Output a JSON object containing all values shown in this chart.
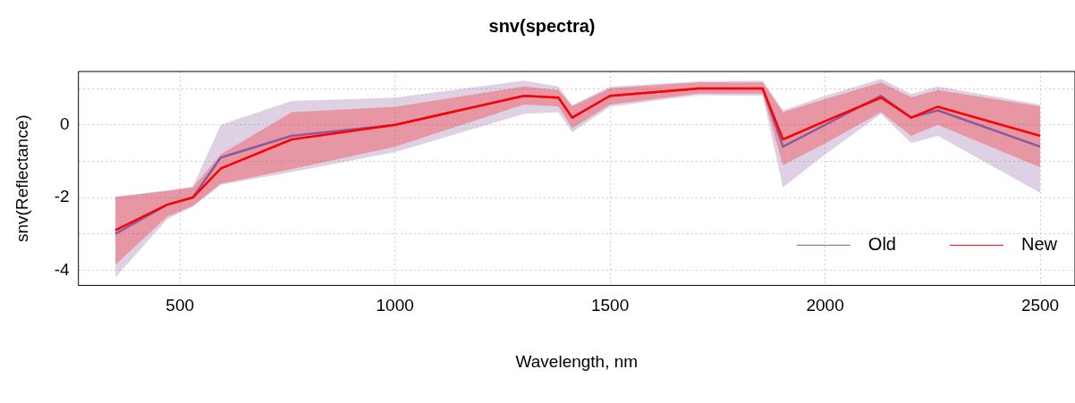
{
  "chart_data": {
    "type": "line",
    "title": "snv(spectra)",
    "xlabel": "Wavelength, nm",
    "ylabel": "snv(Reflectance)",
    "x": [
      350,
      470,
      530,
      595,
      760,
      1000,
      1300,
      1380,
      1412,
      1500,
      1705,
      1855,
      1902,
      2000,
      2130,
      2200,
      2262,
      2500
    ],
    "xlim": [
      264,
      2581
    ],
    "xticks": [
      500,
      1000,
      1500,
      2000,
      2500
    ],
    "ylim": [
      -4.42,
      1.47
    ],
    "yticks": [
      -4,
      {
        "value": -3,
        "label": null
      },
      -2,
      {
        "value": -1,
        "label": null
      },
      0,
      {
        "value": 1,
        "label": null
      }
    ],
    "grid": true,
    "legend": "bottom right",
    "series": [
      {
        "name": "Old",
        "color": "#8a5a9e",
        "values": [
          -3.0,
          -2.2,
          -2.0,
          -0.9,
          -0.3,
          0,
          0.8,
          0.75,
          0.2,
          0.8,
          1.0,
          1.0,
          -0.6,
          0.0,
          0.8,
          0.2,
          0.4,
          -0.6
        ],
        "lower": [
          -4.2,
          -2.6,
          -2.25,
          -1.65,
          -1.3,
          -0.75,
          0.3,
          0.35,
          -0.2,
          0.5,
          0.82,
          0.8,
          -1.72,
          -0.81,
          0.3,
          -0.5,
          -0.3,
          -1.87
        ],
        "upper": [
          -1.98,
          -1.8,
          -1.7,
          0,
          0.66,
          0.75,
          1.22,
          1.06,
          0.55,
          1.05,
          1.2,
          1.22,
          0.4,
          0.8,
          1.27,
          0.85,
          1.06,
          0.56
        ]
      },
      {
        "name": "New",
        "color": "#ff0000",
        "values": [
          -2.9,
          -2.2,
          -2.0,
          -1.2,
          -0.4,
          0,
          0.8,
          0.75,
          0.2,
          0.8,
          1.0,
          1.0,
          -0.4,
          0.1,
          0.75,
          0.2,
          0.5,
          -0.3
        ],
        "lower": [
          -3.85,
          -2.53,
          -2.23,
          -1.62,
          -1.22,
          -0.6,
          0.56,
          0.51,
          -0.1,
          0.56,
          0.86,
          0.86,
          -1.11,
          -0.51,
          0.35,
          -0.3,
          0,
          -1.17
        ],
        "upper": [
          -1.98,
          -1.82,
          -1.72,
          -0.81,
          0.35,
          0.5,
          1.06,
          0.96,
          0.51,
          1.01,
          1.17,
          1.17,
          0.35,
          0.71,
          1.17,
          0.76,
          0.96,
          0.51
        ]
      }
    ]
  }
}
